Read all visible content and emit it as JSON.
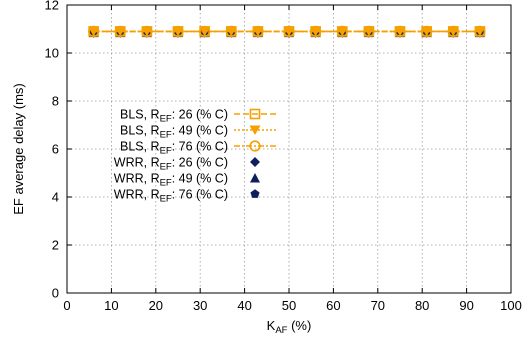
{
  "chart_data": {
    "type": "line",
    "xlabel": "K",
    "xlabel_sub": "AF",
    "xlabel_unit": " (%)",
    "ylabel": "EF average delay (ms)",
    "xlim": [
      0,
      100
    ],
    "ylim": [
      0,
      12
    ],
    "xticks": [
      0,
      10,
      20,
      30,
      40,
      50,
      60,
      70,
      80,
      90,
      100
    ],
    "yticks": [
      0,
      2,
      4,
      6,
      8,
      10,
      12
    ],
    "grid": true,
    "legend_position": "center-left",
    "x": [
      6,
      12,
      18,
      25,
      31,
      37,
      43,
      50,
      56,
      62,
      68,
      75,
      81,
      87,
      93
    ],
    "series": [
      {
        "name_parts": [
          "BLS, R",
          "EF",
          ": 26 (% C)"
        ],
        "marker": "square-open",
        "line": "dashed",
        "color": "#f5a000",
        "values": [
          10.9,
          10.9,
          10.9,
          10.9,
          10.9,
          10.9,
          10.9,
          10.9,
          10.9,
          10.9,
          10.9,
          10.9,
          10.9,
          10.9,
          10.9
        ]
      },
      {
        "name_parts": [
          "BLS, R",
          "EF",
          ": 49 (% C)"
        ],
        "marker": "triangle-down",
        "line": "dotted",
        "color": "#f5a000",
        "values": [
          10.9,
          10.9,
          10.9,
          10.9,
          10.9,
          10.9,
          10.9,
          10.9,
          10.9,
          10.9,
          10.9,
          10.9,
          10.9,
          10.9,
          10.9
        ]
      },
      {
        "name_parts": [
          "BLS, R",
          "EF",
          ": 76 (% C)"
        ],
        "marker": "circle-open",
        "line": "dashdot",
        "color": "#f5a000",
        "values": [
          10.9,
          10.9,
          10.9,
          10.9,
          10.9,
          10.9,
          10.9,
          10.9,
          10.9,
          10.9,
          10.9,
          10.9,
          10.9,
          10.9,
          10.9
        ]
      },
      {
        "name_parts": [
          "WRR, R",
          "EF",
          ": 26 (% C)"
        ],
        "marker": "diamond",
        "line": "none",
        "color": "#0f1f5c",
        "values": [
          10.85,
          10.85,
          10.85,
          10.85,
          10.85,
          10.85,
          10.85,
          10.85,
          10.85,
          10.85,
          10.85,
          10.85,
          10.85,
          10.85,
          10.85
        ]
      },
      {
        "name_parts": [
          "WRR, R",
          "EF",
          ": 49 (% C)"
        ],
        "marker": "triangle-up",
        "line": "none",
        "color": "#0f1f5c",
        "values": [
          10.85,
          10.85,
          10.85,
          10.85,
          10.85,
          10.85,
          10.85,
          10.85,
          10.85,
          10.85,
          10.85,
          10.85,
          10.85,
          10.85,
          10.85
        ]
      },
      {
        "name_parts": [
          "WRR, R",
          "EF",
          ": 76 (% C)"
        ],
        "marker": "pentagon",
        "line": "none",
        "color": "#0f1f5c",
        "values": [
          10.85,
          10.85,
          10.85,
          10.85,
          10.85,
          10.85,
          10.85,
          10.85,
          10.85,
          10.85,
          10.85,
          10.85,
          10.85,
          10.85,
          10.85
        ]
      }
    ]
  }
}
